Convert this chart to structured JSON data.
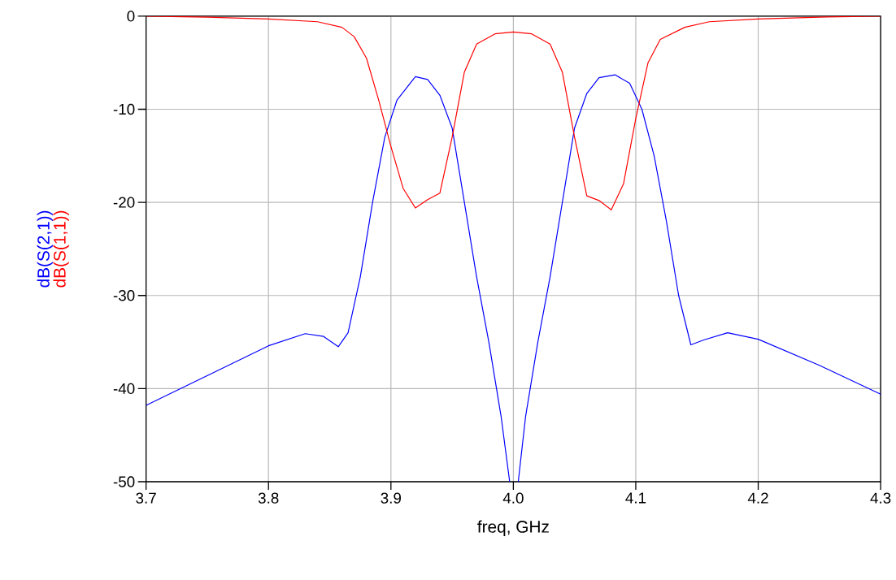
{
  "chart_data": {
    "type": "line",
    "xlabel": "freq, GHz",
    "xlim": [
      3.7,
      4.3
    ],
    "xticks": [
      3.7,
      3.8,
      3.9,
      {
        "value": 4.0,
        "label": "4.0"
      },
      4.1,
      4.2,
      4.3
    ],
    "ylim": [
      -50,
      0
    ],
    "yticks": [
      -50,
      -40,
      -30,
      -20,
      -10,
      0
    ],
    "grid": true,
    "legend": "left",
    "line_style": "solid",
    "series": [
      {
        "name": "dB(S(2,1))",
        "color": "#0000ff",
        "x": [
          3.7,
          3.75,
          3.8,
          3.83,
          3.845,
          3.857,
          3.865,
          3.875,
          3.885,
          3.895,
          3.905,
          3.92,
          3.93,
          3.94,
          3.95,
          3.96,
          3.97,
          3.98,
          3.99,
          3.997,
          4.0,
          4.004,
          4.01,
          4.02,
          4.03,
          4.04,
          4.05,
          4.06,
          4.07,
          4.083,
          4.095,
          4.105,
          4.115,
          4.125,
          4.135,
          4.145,
          4.155,
          4.175,
          4.2,
          4.25,
          4.3
        ],
        "values": [
          -41.8,
          -38.6,
          -35.4,
          -34.1,
          -34.4,
          -35.5,
          -34,
          -28,
          -20,
          -13,
          -9,
          -6.5,
          -6.8,
          -8.5,
          -12,
          -20,
          -28,
          -35,
          -43,
          -50,
          null,
          -50,
          -43,
          -35,
          -28,
          -20,
          -12,
          -8.3,
          -6.6,
          -6.3,
          -7.2,
          -10,
          -15,
          -22,
          -30,
          -35.3,
          -34.8,
          -34,
          -34.7,
          -37.5,
          -40.6
        ]
      },
      {
        "name": "dB(S(1,1))",
        "color": "#ff0000",
        "x": [
          3.7,
          3.75,
          3.8,
          3.84,
          3.86,
          3.87,
          3.88,
          3.89,
          3.9,
          3.91,
          3.92,
          3.93,
          3.94,
          3.95,
          3.96,
          3.97,
          3.985,
          4.0,
          4.015,
          4.03,
          4.04,
          4.05,
          4.06,
          4.07,
          4.08,
          4.09,
          4.1,
          4.11,
          4.12,
          4.14,
          4.16,
          4.2,
          4.25,
          4.3
        ],
        "values": [
          0,
          -0.1,
          -0.3,
          -0.6,
          -1.2,
          -2.2,
          -4.5,
          -9,
          -14,
          -18.5,
          -20.6,
          -19.7,
          -19,
          -13,
          -6,
          -3,
          -1.9,
          -1.7,
          -1.9,
          -3,
          -6,
          -13,
          -19.3,
          -19.8,
          -20.8,
          -18,
          -11,
          -5,
          -2.5,
          -1.2,
          -0.6,
          -0.3,
          -0.1,
          0
        ]
      }
    ]
  }
}
